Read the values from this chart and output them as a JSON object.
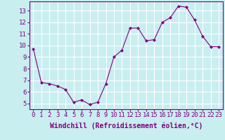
{
  "x": [
    0,
    1,
    2,
    3,
    4,
    5,
    6,
    7,
    8,
    9,
    10,
    11,
    12,
    13,
    14,
    15,
    16,
    17,
    18,
    19,
    20,
    21,
    22,
    23
  ],
  "y": [
    9.7,
    6.8,
    6.7,
    6.5,
    6.2,
    5.1,
    5.3,
    4.9,
    5.1,
    6.7,
    9.0,
    9.6,
    11.5,
    11.5,
    10.4,
    10.5,
    12.0,
    12.4,
    13.4,
    13.3,
    12.2,
    10.8,
    9.9,
    9.9
  ],
  "line_color": "#800080",
  "marker": "D",
  "marker_size": 2,
  "bg_color": "#c8eef0",
  "grid_color": "#ffffff",
  "xlabel": "Windchill (Refroidissement éolien,°C)",
  "xlabel_fontsize": 7,
  "tick_fontsize": 6.5,
  "ylim": [
    4.5,
    13.8
  ],
  "yticks": [
    5,
    6,
    7,
    8,
    9,
    10,
    11,
    12,
    13
  ],
  "xlim": [
    -0.5,
    23.5
  ],
  "xticks": [
    0,
    1,
    2,
    3,
    4,
    5,
    6,
    7,
    8,
    9,
    10,
    11,
    12,
    13,
    14,
    15,
    16,
    17,
    18,
    19,
    20,
    21,
    22,
    23
  ]
}
